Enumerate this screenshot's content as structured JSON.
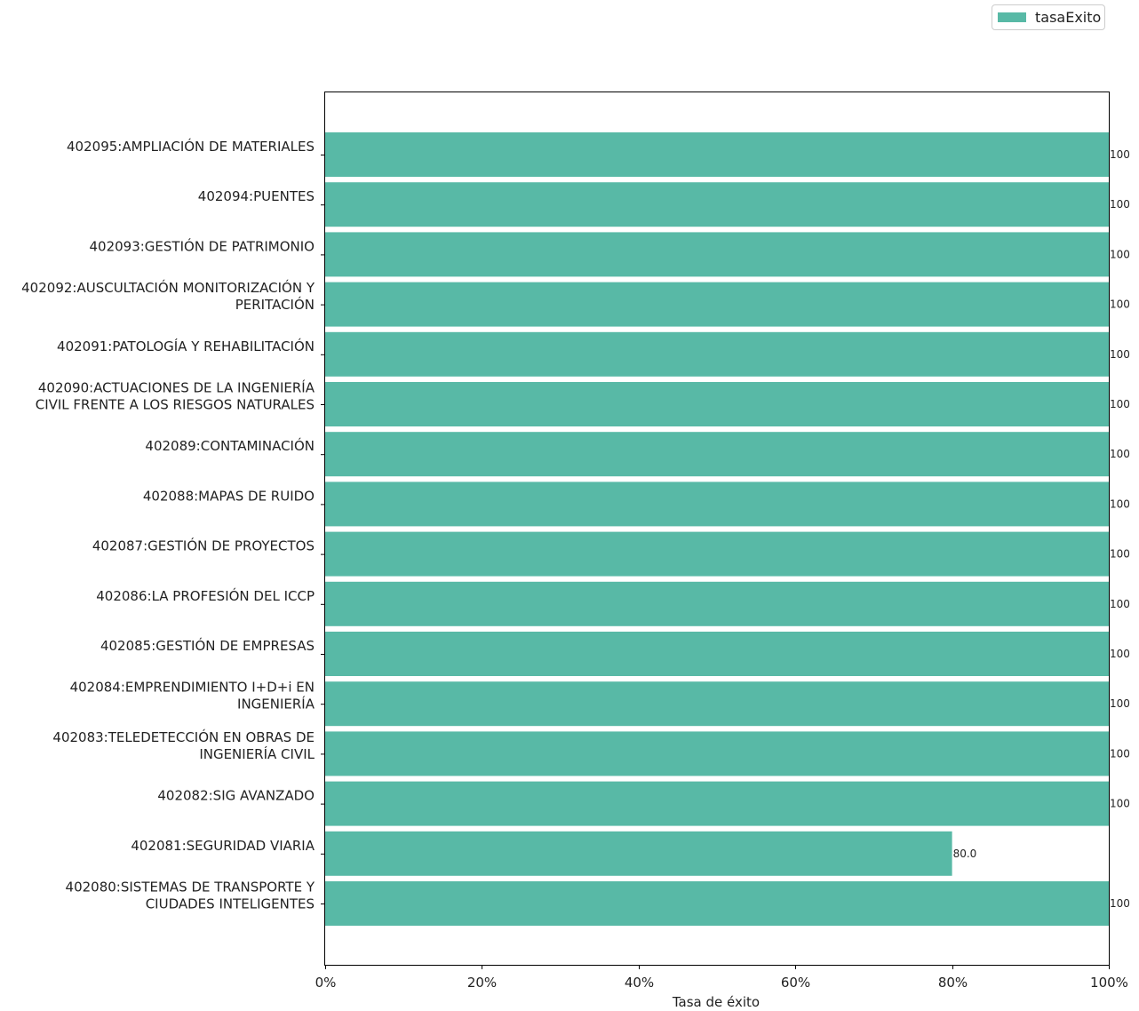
{
  "chart_data": {
    "type": "bar",
    "orientation": "horizontal",
    "categories": [
      [
        "402095:AMPLIACIÓN DE MATERIALES"
      ],
      [
        "402094:PUENTES"
      ],
      [
        "402093:GESTIÓN DE PATRIMONIO"
      ],
      [
        "402092:AUSCULTACIÓN MONITORIZACIÓN Y",
        "PERITACIÓN"
      ],
      [
        "402091:PATOLOGÍA Y REHABILITACIÓN"
      ],
      [
        "402090:ACTUACIONES DE LA INGENIERÍA",
        "CIVIL FRENTE A LOS RIESGOS NATURALES"
      ],
      [
        "402089:CONTAMINACIÓN"
      ],
      [
        "402088:MAPAS DE RUIDO"
      ],
      [
        "402087:GESTIÓN DE PROYECTOS"
      ],
      [
        "402086:LA PROFESIÓN DEL ICCP"
      ],
      [
        "402085:GESTIÓN DE EMPRESAS"
      ],
      [
        "402084:EMPRENDIMIENTO I+D+i EN",
        "INGENIERÍA"
      ],
      [
        "402083:TELEDETECCIÓN EN OBRAS DE",
        "INGENIERÍA CIVIL"
      ],
      [
        "402082:SIG AVANZADO"
      ],
      [
        "402081:SEGURIDAD VIARIA"
      ],
      [
        "402080:SISTEMAS DE TRANSPORTE Y",
        "CIUDADES INTELIGENTES"
      ]
    ],
    "series": [
      {
        "name": "tasaExito",
        "color": "#58b9a6",
        "values": [
          100,
          100,
          100,
          100,
          100,
          100,
          100,
          100,
          100,
          100,
          100,
          100,
          100,
          100,
          80,
          100
        ],
        "value_labels": [
          "100",
          "100",
          "100",
          "100",
          "100",
          "100",
          "100",
          "100",
          "100",
          "100",
          "100",
          "100",
          "100",
          "100",
          "80.0",
          "100"
        ]
      }
    ],
    "xlim": [
      0,
      100
    ],
    "xticks": [
      0,
      20,
      40,
      60,
      80,
      100
    ],
    "xtick_labels": [
      "0%",
      "20%",
      "40%",
      "60%",
      "80%",
      "100%"
    ],
    "xlabel": "Tasa de éxito",
    "ylabel": "",
    "title": "",
    "grid": false,
    "legend": {
      "position": "top-right"
    }
  }
}
